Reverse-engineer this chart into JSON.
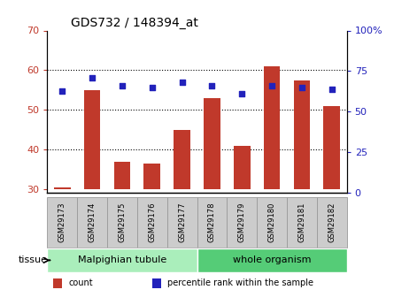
{
  "title": "GDS732 / 148394_at",
  "samples": [
    "GSM29173",
    "GSM29174",
    "GSM29175",
    "GSM29176",
    "GSM29177",
    "GSM29178",
    "GSM29179",
    "GSM29180",
    "GSM29181",
    "GSM29182"
  ],
  "counts": [
    30.5,
    55,
    37,
    36.5,
    45,
    53,
    41,
    61,
    57.5,
    51
  ],
  "percentiles": [
    63,
    71,
    66,
    65,
    68,
    66,
    61,
    66,
    65,
    64
  ],
  "ylim_left": [
    29,
    70
  ],
  "ylim_right": [
    0,
    100
  ],
  "yticks_left": [
    30,
    40,
    50,
    60,
    70
  ],
  "yticks_right": [
    0,
    25,
    50,
    75,
    100
  ],
  "ytick_labels_right": [
    "0",
    "25",
    "50",
    "75",
    "100%"
  ],
  "bar_color": "#C0392B",
  "dot_color": "#2222BB",
  "grid_color": "#000000",
  "background_color": "#FFFFFF",
  "tissue_groups": [
    {
      "label": "Malpighian tubule",
      "start": 0,
      "end": 5,
      "color": "#AAEEBB"
    },
    {
      "label": "whole organism",
      "start": 5,
      "end": 10,
      "color": "#55CC77"
    }
  ],
  "tissue_label": "tissue",
  "legend_items": [
    {
      "label": "count",
      "color": "#C0392B"
    },
    {
      "label": "percentile rank within the sample",
      "color": "#2222BB"
    }
  ],
  "xticklabel_bg": "#CCCCCC",
  "bar_bottom": 30
}
